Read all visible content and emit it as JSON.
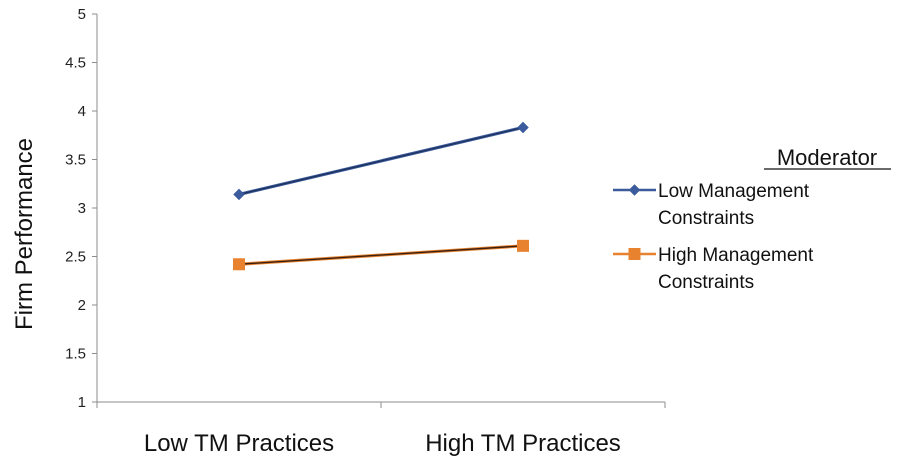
{
  "chart_data": {
    "type": "line",
    "categories": [
      "Low TM Practices",
      "High TM Practices"
    ],
    "series": [
      {
        "name": "Low Management Constraints",
        "name_lines": [
          "Low Management",
          "Constraints"
        ],
        "values": [
          3.14,
          3.83
        ],
        "color": "#3c5b9c",
        "marker": "diamond"
      },
      {
        "name": "High Management Constraints",
        "name_lines": [
          "High Management",
          "Constraints"
        ],
        "values": [
          2.42,
          2.61
        ],
        "color": "#e8822e",
        "marker": "square"
      }
    ],
    "title": "",
    "xlabel": "",
    "ylabel": "Firm Performance",
    "ylim": [
      1,
      5
    ],
    "yticks": [
      "1",
      "1.5",
      "2",
      "2.5",
      "3",
      "3.5",
      "4",
      "4.5",
      "5"
    ],
    "grid": false,
    "legend": {
      "title": "Moderator",
      "placement": "right"
    }
  }
}
